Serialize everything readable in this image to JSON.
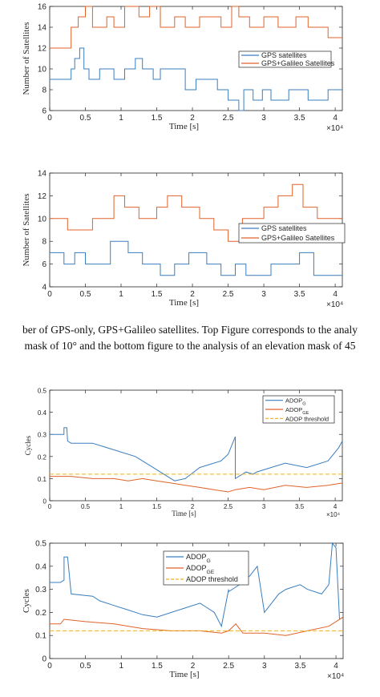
{
  "colors": {
    "gps": "#3a7ebf",
    "galileo": "#e0622a",
    "threshold": "#edb120"
  },
  "caption": {
    "line1": "ber of GPS-only, GPS+Galileo satellites. Top Figure corresponds to the analy",
    "line2": " mask of 10° and the bottom figure to the analysis of an elevation mask of 45"
  },
  "chart_data": [
    {
      "type": "line",
      "xlabel": "Time [s]",
      "ylabel": "Number of Satellites",
      "exponent": "×10⁴",
      "xlim": [
        0,
        4.1
      ],
      "ylim": [
        6,
        16
      ],
      "xticks": [
        "0",
        "0.5",
        "1",
        "1.5",
        "2",
        "2.5",
        "3",
        "3.5",
        "4"
      ],
      "yticks": [
        "6",
        "8",
        "10",
        "12",
        "14",
        "16"
      ],
      "legend_position": "top-right",
      "series": [
        {
          "name": "GPS satellites",
          "color_key": "gps",
          "x": [
            0,
            0.3,
            0.3,
            0.35,
            0.35,
            0.42,
            0.42,
            0.48,
            0.48,
            0.55,
            0.55,
            0.7,
            0.7,
            0.9,
            0.9,
            1.05,
            1.05,
            1.2,
            1.2,
            1.3,
            1.3,
            1.45,
            1.45,
            1.55,
            1.55,
            1.9,
            1.9,
            2.05,
            2.05,
            2.35,
            2.35,
            2.5,
            2.5,
            2.65,
            2.65,
            2.72,
            2.72,
            2.85,
            2.85,
            2.98,
            2.98,
            3.1,
            3.1,
            3.35,
            3.35,
            3.62,
            3.62,
            3.9,
            3.9,
            4.1
          ],
          "values": [
            9,
            9,
            10,
            10,
            11,
            11,
            12,
            12,
            10,
            10,
            9,
            9,
            10,
            10,
            9,
            9,
            10,
            10,
            11,
            11,
            10,
            10,
            9,
            9,
            10,
            10,
            8,
            8,
            9,
            9,
            8,
            8,
            7,
            7,
            6,
            6,
            8,
            8,
            7,
            7,
            8,
            8,
            7,
            7,
            8,
            8,
            7,
            7,
            8,
            8
          ]
        },
        {
          "name": "GPS+Galileo Satellites",
          "color_key": "galileo",
          "x": [
            0,
            0.3,
            0.3,
            0.4,
            0.4,
            0.5,
            0.5,
            0.6,
            0.6,
            0.8,
            0.8,
            0.9,
            0.9,
            1.05,
            1.05,
            1.25,
            1.25,
            1.4,
            1.4,
            1.55,
            1.55,
            1.75,
            1.75,
            1.9,
            1.9,
            2.1,
            2.1,
            2.4,
            2.4,
            2.55,
            2.55,
            2.65,
            2.65,
            2.8,
            2.8,
            3.0,
            3.0,
            3.2,
            3.2,
            3.45,
            3.45,
            3.62,
            3.62,
            3.9,
            3.9,
            4.1
          ],
          "values": [
            12,
            12,
            14,
            14,
            15,
            15,
            16,
            16,
            14,
            14,
            15,
            15,
            14,
            14,
            16,
            16,
            15,
            15,
            16,
            16,
            14,
            14,
            15,
            15,
            14,
            14,
            15,
            15,
            14,
            14,
            16,
            16,
            15,
            15,
            14,
            14,
            15,
            15,
            14,
            14,
            15,
            15,
            14,
            14,
            13,
            13
          ]
        }
      ]
    },
    {
      "type": "line",
      "xlabel": "Time [s]",
      "ylabel": "Number of Satellites",
      "exponent": "×10⁴",
      "xlim": [
        0,
        4.1
      ],
      "ylim": [
        4,
        14
      ],
      "xticks": [
        "0",
        "0.5",
        "1",
        "1.5",
        "2",
        "2.5",
        "3",
        "3.5",
        "4"
      ],
      "yticks": [
        "4",
        "6",
        "8",
        "10",
        "12",
        "14"
      ],
      "legend_position": "bottom-right",
      "series": [
        {
          "name": "GPS satellites",
          "color_key": "gps",
          "x": [
            0,
            0.2,
            0.2,
            0.35,
            0.35,
            0.5,
            0.5,
            0.85,
            0.85,
            1.1,
            1.1,
            1.3,
            1.3,
            1.55,
            1.55,
            1.75,
            1.75,
            1.95,
            1.95,
            2.2,
            2.2,
            2.4,
            2.4,
            2.6,
            2.6,
            2.75,
            2.75,
            3.1,
            3.1,
            3.5,
            3.5,
            3.7,
            3.7,
            4.1
          ],
          "values": [
            7,
            7,
            6,
            6,
            7,
            7,
            6,
            6,
            8,
            8,
            7,
            7,
            6,
            6,
            5,
            5,
            6,
            6,
            7,
            7,
            6,
            6,
            5,
            5,
            6,
            6,
            5,
            5,
            6,
            6,
            7,
            7,
            5,
            5
          ]
        },
        {
          "name": "GPS+Galileo Satellites",
          "color_key": "galileo",
          "x": [
            0,
            0.25,
            0.25,
            0.6,
            0.6,
            0.9,
            0.9,
            1.05,
            1.05,
            1.25,
            1.25,
            1.5,
            1.5,
            1.65,
            1.65,
            1.85,
            1.85,
            2.1,
            2.1,
            2.3,
            2.3,
            2.5,
            2.5,
            2.7,
            2.7,
            3.0,
            3.0,
            3.2,
            3.2,
            3.4,
            3.4,
            3.55,
            3.55,
            3.75,
            3.75,
            4.1
          ],
          "values": [
            10,
            10,
            9,
            9,
            10,
            10,
            12,
            12,
            11,
            11,
            10,
            10,
            11,
            11,
            12,
            12,
            11,
            11,
            10,
            10,
            9,
            9,
            8,
            8,
            10,
            10,
            11,
            11,
            12,
            12,
            13,
            13,
            11,
            11,
            10,
            10
          ]
        }
      ]
    },
    {
      "type": "line",
      "xlabel": "Time [s]",
      "ylabel": "Cycles",
      "exponent": "×10⁴",
      "xlim": [
        0,
        4.1
      ],
      "ylim": [
        0,
        0.5
      ],
      "xticks": [
        "0",
        "0.5",
        "1",
        "1.5",
        "2",
        "2.5",
        "3",
        "3.5",
        "4"
      ],
      "yticks": [
        "0",
        "0.1",
        "0.2",
        "0.3",
        "0.4",
        "0.5"
      ],
      "legend_position": "top-right",
      "series": [
        {
          "name": "ADOP_G",
          "color_key": "gps",
          "style": "solid",
          "x": [
            0,
            0.2,
            0.2,
            0.24,
            0.25,
            0.3,
            0.6,
            0.7,
            0.9,
            1.2,
            1.3,
            1.45,
            1.6,
            1.75,
            1.9,
            2.1,
            2.4,
            2.5,
            2.6,
            2.6,
            2.75,
            2.85,
            2.9,
            3.1,
            3.3,
            3.6,
            3.9,
            4.05,
            4.1
          ],
          "values": [
            0.3,
            0.3,
            0.33,
            0.33,
            0.27,
            0.26,
            0.26,
            0.25,
            0.23,
            0.2,
            0.18,
            0.15,
            0.12,
            0.09,
            0.1,
            0.15,
            0.18,
            0.21,
            0.29,
            0.1,
            0.13,
            0.12,
            0.13,
            0.15,
            0.17,
            0.15,
            0.18,
            0.24,
            0.27
          ]
        },
        {
          "name": "ADOP_GE",
          "color_key": "galileo",
          "style": "solid",
          "x": [
            0,
            0.3,
            0.6,
            0.9,
            1.1,
            1.3,
            1.5,
            1.7,
            1.9,
            2.1,
            2.3,
            2.5,
            2.6,
            2.8,
            3.0,
            3.3,
            3.6,
            3.9,
            4.1
          ],
          "values": [
            0.11,
            0.11,
            0.1,
            0.1,
            0.09,
            0.1,
            0.09,
            0.08,
            0.07,
            0.06,
            0.05,
            0.04,
            0.05,
            0.06,
            0.05,
            0.07,
            0.06,
            0.07,
            0.08
          ]
        },
        {
          "name": "ADOP threshold",
          "color_key": "threshold",
          "style": "dashed",
          "x": [
            0,
            4.1
          ],
          "values": [
            0.12,
            0.12
          ]
        }
      ]
    },
    {
      "type": "line",
      "xlabel": "Time [s]",
      "ylabel": "Cycles",
      "exponent": "×10⁴",
      "xlim": [
        0,
        4.1
      ],
      "ylim": [
        0,
        0.5
      ],
      "xticks": [
        "0",
        "0.5",
        "1",
        "1.5",
        "2",
        "2.5",
        "3",
        "3.5",
        "4"
      ],
      "yticks": [
        "0",
        "0.1",
        "0.2",
        "0.3",
        "0.4",
        "0.5"
      ],
      "legend_position": "top-center",
      "series": [
        {
          "name": "ADOP_G",
          "color_key": "gps",
          "style": "solid",
          "x": [
            0,
            0.15,
            0.2,
            0.2,
            0.25,
            0.3,
            0.6,
            0.7,
            0.9,
            1.1,
            1.3,
            1.5,
            1.7,
            1.9,
            2.1,
            2.3,
            2.4,
            2.5,
            2.5,
            2.7,
            2.8,
            2.9,
            3.0,
            3.2,
            3.3,
            3.5,
            3.6,
            3.8,
            3.9,
            3.95,
            4.0,
            4.05,
            4.1
          ],
          "values": [
            0.33,
            0.33,
            0.34,
            0.44,
            0.44,
            0.28,
            0.27,
            0.25,
            0.23,
            0.21,
            0.19,
            0.18,
            0.2,
            0.22,
            0.24,
            0.2,
            0.14,
            0.3,
            0.29,
            0.33,
            0.36,
            0.4,
            0.2,
            0.28,
            0.3,
            0.32,
            0.3,
            0.28,
            0.32,
            0.5,
            0.48,
            0.17,
            0.18
          ]
        },
        {
          "name": "ADOP_GE",
          "color_key": "galileo",
          "style": "solid",
          "x": [
            0,
            0.15,
            0.2,
            0.5,
            0.9,
            1.3,
            1.7,
            2.1,
            2.4,
            2.5,
            2.6,
            2.7,
            3.0,
            3.3,
            3.6,
            3.9,
            4.0,
            4.1
          ],
          "values": [
            0.15,
            0.15,
            0.17,
            0.16,
            0.15,
            0.13,
            0.12,
            0.12,
            0.11,
            0.12,
            0.15,
            0.11,
            0.11,
            0.1,
            0.12,
            0.14,
            0.16,
            0.18
          ]
        },
        {
          "name": "ADOP threshold",
          "color_key": "threshold",
          "style": "dashed",
          "x": [
            0,
            4.1
          ],
          "values": [
            0.12,
            0.12
          ]
        }
      ]
    }
  ]
}
